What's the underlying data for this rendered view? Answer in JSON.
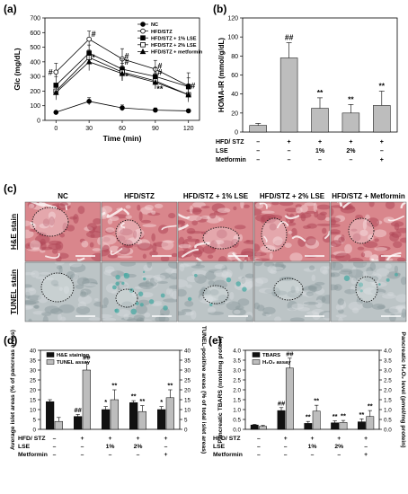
{
  "panels": {
    "a": {
      "label": "(a)"
    },
    "b": {
      "label": "(b)"
    },
    "c": {
      "label": "(c)"
    },
    "d": {
      "label": "(d)"
    },
    "e": {
      "label": "(e)"
    }
  },
  "groups": [
    "NC",
    "HFD/STZ",
    "HFD/STZ + 1% LSE",
    "HFD/STZ + 2% LSE",
    "HFD/STZ + Metformin"
  ],
  "treatment_table": {
    "rows": [
      {
        "label": "HFD/ STZ",
        "marks": [
          "–",
          "+",
          "+",
          "+",
          "+"
        ]
      },
      {
        "label": "LSE",
        "marks": [
          "–",
          "–",
          "1%",
          "2%",
          "–"
        ]
      },
      {
        "label": "Metformin",
        "marks": [
          "–",
          "–",
          "–",
          "–",
          "+"
        ]
      }
    ]
  },
  "chart_data": [
    {
      "panel": "a",
      "type": "line",
      "xlabel": "Time (min)",
      "ylabel": "Glc (mg/dL)",
      "x": [
        0,
        30,
        60,
        90,
        120
      ],
      "xlim": [
        -10,
        130
      ],
      "ylim": [
        0,
        700
      ],
      "yticks": [
        0,
        100,
        200,
        300,
        400,
        500,
        600,
        700
      ],
      "xticks": [
        0,
        30,
        60,
        90,
        120
      ],
      "legend_position": "top-right",
      "legend": [
        "NC",
        "HFD/STZ",
        "HFD/STZ + 1% LSE",
        "HFD/STZ + 2% LSE",
        "HFD/STZ + metformin"
      ],
      "series": [
        {
          "name": "NC",
          "marker": "circle-filled",
          "values": [
            55,
            130,
            85,
            70,
            65
          ],
          "errors": [
            10,
            25,
            20,
            15,
            10
          ]
        },
        {
          "name": "HFD/STZ",
          "marker": "circle-open",
          "values": [
            330,
            555,
            420,
            350,
            235
          ],
          "errors": [
            60,
            55,
            70,
            60,
            90
          ]
        },
        {
          "name": "HFD/STZ + 1% LSE",
          "marker": "square-filled",
          "values": [
            240,
            460,
            350,
            300,
            230
          ],
          "errors": [
            60,
            55,
            70,
            60,
            60
          ]
        },
        {
          "name": "HFD/STZ + 2% LSE",
          "marker": "square-open",
          "values": [
            200,
            430,
            330,
            270,
            175
          ],
          "errors": [
            50,
            50,
            60,
            55,
            50
          ]
        },
        {
          "name": "HFD/STZ + metformin",
          "marker": "triangle-filled",
          "values": [
            190,
            400,
            320,
            260,
            175
          ],
          "errors": [
            50,
            60,
            50,
            40,
            40
          ]
        }
      ],
      "annotations": [
        {
          "text": "#",
          "x": 0,
          "y": 330
        },
        {
          "text": "#",
          "x": 30,
          "y": 590
        },
        {
          "text": "*",
          "x": 30,
          "y": 430
        },
        {
          "text": "#",
          "x": 60,
          "y": 440
        },
        {
          "text": "#",
          "x": 60,
          "y": 400
        },
        {
          "text": "*",
          "x": 60,
          "y": 300
        },
        {
          "text": "#",
          "x": 90,
          "y": 370
        },
        {
          "text": "#",
          "x": 90,
          "y": 330
        },
        {
          "text": "**",
          "x": 90,
          "y": 215
        },
        {
          "text": "#",
          "x": 120,
          "y": 235
        }
      ]
    },
    {
      "panel": "b",
      "type": "bar",
      "ylabel": "HOMA-IR (mmol/g/dL)",
      "categories": [
        "NC",
        "HFD/STZ",
        "HFD/STZ + 1% LSE",
        "HFD/STZ + 2% LSE",
        "HFD/STZ + Metformin"
      ],
      "values": [
        7,
        78,
        25,
        20,
        28
      ],
      "errors": [
        2,
        16,
        11,
        9,
        15
      ],
      "ylim": [
        0,
        120
      ],
      "yticks": [
        0,
        20,
        40,
        60,
        80,
        100,
        120
      ],
      "labels": [
        "",
        "##",
        "**",
        "**",
        "**"
      ]
    },
    {
      "panel": "d",
      "type": "bar",
      "ylabel": "Average islet areas (% of pancreas areas)",
      "y2label": "TUNEL-positive areas (% of total islet areas)",
      "categories": [
        "NC",
        "HFD/STZ",
        "HFD/STZ + 1% LSE",
        "HFD/STZ + 2% LSE",
        "HFD/STZ + Metformin"
      ],
      "ylim": [
        0,
        40
      ],
      "yticks": [
        0,
        5,
        10,
        15,
        20,
        25,
        30,
        35,
        40
      ],
      "y2lim": [
        0,
        40
      ],
      "legend_position": "top-left",
      "series": [
        {
          "name": "H&E staining",
          "axis": "left",
          "values": [
            14,
            6.5,
            10,
            13.5,
            10
          ],
          "errors": [
            1,
            1,
            1.5,
            1,
            1.5
          ],
          "labels": [
            "",
            "##",
            "*",
            "**",
            "*"
          ]
        },
        {
          "name": "TUNEL assay",
          "axis": "right",
          "values": [
            4,
            30,
            15,
            9,
            16
          ],
          "errors": [
            2,
            4,
            5,
            3,
            4
          ],
          "labels": [
            "",
            "##",
            "**",
            "**",
            "**"
          ]
        }
      ]
    },
    {
      "panel": "e",
      "type": "bar",
      "ylabel": "Pancreatic TBARS (nmol/mg protein)",
      "y2label": "Pancreatic H₂O₂ level (pmol/mg protein)",
      "categories": [
        "NC",
        "HFD/STZ",
        "HFD/STZ + 1% LSE",
        "HFD/STZ + 2% LSE",
        "HFD/STZ + Metformin"
      ],
      "ylim": [
        0,
        4.0
      ],
      "yticks": [
        0,
        0.5,
        1.0,
        1.5,
        2.0,
        2.5,
        3.0,
        3.5,
        4.0
      ],
      "y2lim": [
        0,
        4.0
      ],
      "legend_position": "top-left",
      "series": [
        {
          "name": "TBARS",
          "axis": "left",
          "values": [
            0.22,
            0.95,
            0.3,
            0.33,
            0.38
          ],
          "errors": [
            0.03,
            0.15,
            0.1,
            0.1,
            0.15
          ],
          "labels": [
            "",
            "##",
            "**",
            "**",
            "**"
          ]
        },
        {
          "name": "H₂O₂ assay",
          "axis": "right",
          "values": [
            0.15,
            3.1,
            0.92,
            0.35,
            0.65
          ],
          "errors": [
            0.05,
            0.5,
            0.3,
            0.1,
            0.3
          ],
          "labels": [
            "",
            "##",
            "**",
            "**",
            "**"
          ]
        }
      ]
    }
  ],
  "histology": {
    "row_labels": [
      "H&E stain",
      "TUNEL stain"
    ],
    "columns": [
      "NC",
      "HFD/STZ",
      "HFD/STZ + 1% LSE",
      "HFD/STZ + 2% LSE",
      "HFD/STZ + Metformin"
    ],
    "colors": {
      "he_base": "#d9868c",
      "he_dark": "#b0485a",
      "he_light": "#f2cfd2",
      "tunel_base": "#bcc4c6",
      "tunel_dark": "#8a9a9c",
      "tunel_stain": "#4aa9a3"
    }
  },
  "colors": {
    "bar_dark": "#111111",
    "bar_light": "#bdbdbd",
    "axis": "#000000"
  }
}
